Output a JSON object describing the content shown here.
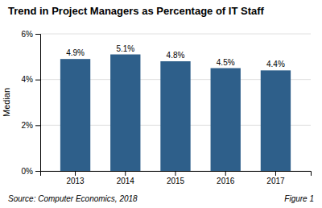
{
  "chart_data": {
    "type": "bar",
    "title": "Trend in Project Managers as Percentage of IT Staff",
    "categories": [
      "2013",
      "2014",
      "2015",
      "2016",
      "2017"
    ],
    "values": [
      4.9,
      5.1,
      4.8,
      4.5,
      4.4
    ],
    "value_labels": [
      "4.9%",
      "5.1%",
      "4.8%",
      "4.5%",
      "4.4%"
    ],
    "data_labels": true,
    "color": "#2E5F8A",
    "ylabel": "Median",
    "ylim": [
      0,
      6
    ],
    "yticks": [
      {
        "value": 0,
        "label": "0%"
      },
      {
        "value": 2,
        "label": "2%"
      },
      {
        "value": 4,
        "label": "4%"
      },
      {
        "value": 6,
        "label": "6%"
      }
    ],
    "grid": true,
    "annotations": [
      "Source: Computer Economics, 2018",
      "Figure 1"
    ]
  }
}
